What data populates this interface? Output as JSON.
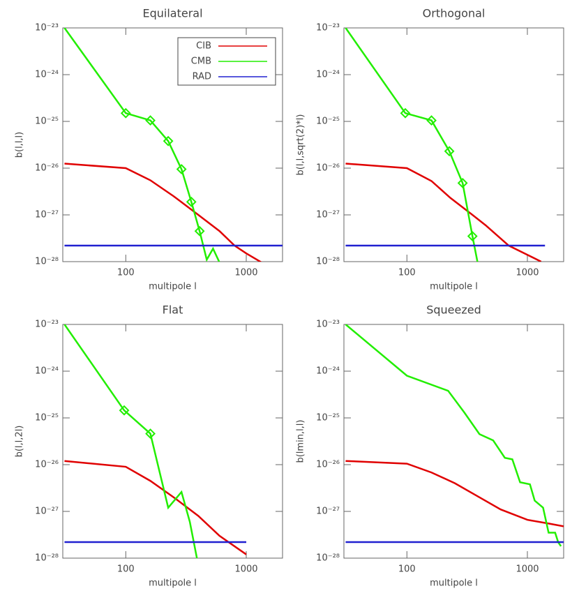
{
  "chart_data": [
    {
      "type": "line",
      "title": "Equilateral",
      "xlabel": "multipole l",
      "ylabel": "b(l,l,l)",
      "xscale": "log",
      "yscale": "log",
      "xlim": [
        30,
        2000
      ],
      "ylim": [
        1e-28,
        1e-23
      ],
      "xticks": [
        100,
        1000
      ],
      "yticks": [
        {
          "value": 1e-28,
          "label": "10⁻²⁸"
        },
        {
          "value": 1e-27,
          "label": "10⁻²⁷"
        },
        {
          "value": 1e-26,
          "label": "10⁻²⁶"
        },
        {
          "value": 1e-25,
          "label": "10⁻²⁵"
        },
        {
          "value": 1e-24,
          "label": "10⁻²⁴"
        },
        {
          "value": 1e-23,
          "label": "10⁻²³"
        }
      ],
      "legend": "upper right",
      "series": [
        {
          "name": "CIB",
          "color": "#e00000",
          "x": [
            31,
            100,
            160,
            250,
            400,
            600,
            800,
            1000,
            1400
          ],
          "values": [
            1.25e-26,
            1e-26,
            5.5e-27,
            2.5e-27,
            1e-27,
            4.5e-28,
            2.2e-28,
            1.5e-28,
            9e-29
          ]
        },
        {
          "name": "CMB",
          "color": "#22ee00",
          "x": [
            31,
            100,
            160,
            225,
            290,
            350,
            410,
            470,
            530,
            620
          ],
          "values": [
            1e-23,
            1.5e-25,
            1.05e-25,
            3.8e-26,
            9.5e-27,
            1.9e-27,
            4.5e-28,
            1.1e-28,
            1.9e-28,
            8e-29
          ],
          "markers": [
            false,
            true,
            true,
            true,
            true,
            true,
            true,
            false,
            false,
            false
          ]
        },
        {
          "name": "RAD",
          "color": "#2020d0",
          "x": [
            31,
            2000
          ],
          "values": [
            2.2e-28,
            2.2e-28
          ]
        }
      ]
    },
    {
      "type": "line",
      "title": "Orthogonal",
      "xlabel": "multipole l",
      "ylabel": "b(l,l,sqrt(2)*l)",
      "xscale": "log",
      "yscale": "log",
      "xlim": [
        30,
        2000
      ],
      "ylim": [
        1e-28,
        1e-23
      ],
      "xticks": [
        100,
        1000
      ],
      "yticks": [
        {
          "value": 1e-28,
          "label": "10⁻²⁸"
        },
        {
          "value": 1e-27,
          "label": "10⁻²⁷"
        },
        {
          "value": 1e-26,
          "label": "10⁻²⁶"
        },
        {
          "value": 1e-25,
          "label": "10⁻²⁵"
        },
        {
          "value": 1e-24,
          "label": "10⁻²⁴"
        },
        {
          "value": 1e-23,
          "label": "10⁻²³"
        }
      ],
      "series": [
        {
          "color": "#e00000",
          "x": [
            31,
            100,
            160,
            230,
            350,
            450,
            700,
            1000,
            1300
          ],
          "values": [
            1.25e-26,
            1e-26,
            5.3e-27,
            2.3e-27,
            1e-27,
            6e-28,
            2.2e-28,
            1.4e-28,
            1e-28
          ]
        },
        {
          "color": "#22ee00",
          "x": [
            31,
            97,
            160,
            225,
            290,
            350,
            400
          ],
          "values": [
            1e-23,
            1.5e-25,
            1.05e-25,
            2.3e-26,
            4.8e-27,
            3.5e-28,
            6e-29
          ],
          "markers": [
            false,
            true,
            true,
            true,
            true,
            true,
            false
          ]
        },
        {
          "color": "#2020d0",
          "x": [
            31,
            1400
          ],
          "values": [
            2.2e-28,
            2.2e-28
          ]
        }
      ]
    },
    {
      "type": "line",
      "title": "Flat",
      "xlabel": "multipole l",
      "ylabel": "b(l,l,2l)",
      "xscale": "log",
      "yscale": "log",
      "xlim": [
        30,
        2000
      ],
      "ylim": [
        1e-28,
        1e-23
      ],
      "xticks": [
        100,
        1000
      ],
      "yticks": [
        {
          "value": 1e-28,
          "label": "10⁻²⁸"
        },
        {
          "value": 1e-27,
          "label": "10⁻²⁷"
        },
        {
          "value": 1e-26,
          "label": "10⁻²⁶"
        },
        {
          "value": 1e-25,
          "label": "10⁻²⁵"
        },
        {
          "value": 1e-24,
          "label": "10⁻²⁴"
        },
        {
          "value": 1e-23,
          "label": "10⁻²³"
        }
      ],
      "series": [
        {
          "color": "#e00000",
          "x": [
            31,
            100,
            160,
            250,
            400,
            600,
            1000
          ],
          "values": [
            1.2e-26,
            9e-27,
            4.5e-27,
            2e-27,
            8e-28,
            3e-28,
            1.2e-28
          ]
        },
        {
          "color": "#22ee00",
          "x": [
            31,
            97,
            160,
            225,
            290,
            340,
            400
          ],
          "values": [
            1e-23,
            1.45e-25,
            4.6e-26,
            1.2e-27,
            2.6e-27,
            6e-28,
            7e-29
          ],
          "markers": [
            false,
            true,
            true,
            false,
            false,
            false,
            false
          ]
        },
        {
          "color": "#2020d0",
          "x": [
            31,
            1000
          ],
          "values": [
            2.2e-28,
            2.2e-28
          ]
        }
      ]
    },
    {
      "type": "line",
      "title": "Squeezed",
      "xlabel": "multipole l",
      "ylabel": "b(lmin,l,l)",
      "xscale": "log",
      "yscale": "log",
      "xlim": [
        30,
        2000
      ],
      "ylim": [
        1e-28,
        1e-23
      ],
      "xticks": [
        100,
        1000
      ],
      "yticks": [
        {
          "value": 1e-28,
          "label": "10⁻²⁸"
        },
        {
          "value": 1e-27,
          "label": "10⁻²⁷"
        },
        {
          "value": 1e-26,
          "label": "10⁻²⁶"
        },
        {
          "value": 1e-25,
          "label": "10⁻²⁵"
        },
        {
          "value": 1e-24,
          "label": "10⁻²⁴"
        },
        {
          "value": 1e-23,
          "label": "10⁻²³"
        }
      ],
      "series": [
        {
          "color": "#e00000",
          "x": [
            31,
            100,
            160,
            250,
            400,
            600,
            1000,
            1500,
            2000
          ],
          "values": [
            1.2e-26,
            1.05e-26,
            6.8e-27,
            4e-27,
            2e-27,
            1.1e-27,
            6.6e-28,
            5.5e-28,
            4.8e-28
          ]
        },
        {
          "color": "#22ee00",
          "x": [
            31,
            100,
            220,
            300,
            400,
            520,
            650,
            750,
            870,
            1050,
            1150,
            1350,
            1500,
            1700,
            1800,
            1900
          ],
          "values": [
            1e-23,
            8e-25,
            3.8e-25,
            1.3e-25,
            4.5e-26,
            3.3e-26,
            1.4e-26,
            1.3e-26,
            4.2e-27,
            3.8e-27,
            1.7e-27,
            1.2e-27,
            3.5e-28,
            3.5e-28,
            2.2e-28,
            1.8e-28
          ]
        },
        {
          "color": "#2020d0",
          "x": [
            31,
            2000
          ],
          "values": [
            2.2e-28,
            2.2e-28
          ]
        }
      ]
    }
  ]
}
